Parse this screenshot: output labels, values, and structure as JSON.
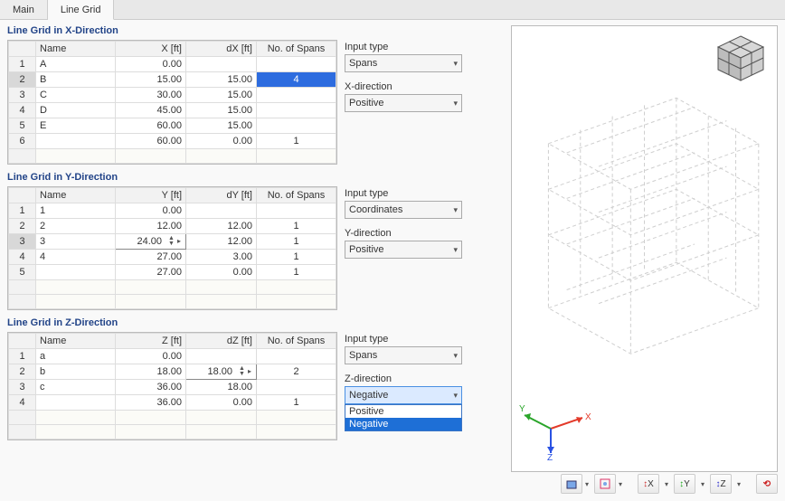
{
  "tabs": {
    "main": "Main",
    "linegrid": "Line Grid"
  },
  "sections": {
    "x": {
      "title": "Line Grid in X-Direction",
      "cols": [
        "",
        "Name",
        "X [ft]",
        "dX [ft]",
        "No. of Spans"
      ],
      "rows": [
        {
          "n": "1",
          "name": "A",
          "v": "0.00",
          "d": "",
          "s": ""
        },
        {
          "n": "2",
          "name": "B",
          "v": "15.00",
          "d": "15.00",
          "s": "4",
          "hl": true
        },
        {
          "n": "3",
          "name": "C",
          "v": "30.00",
          "d": "15.00",
          "s": ""
        },
        {
          "n": "4",
          "name": "D",
          "v": "45.00",
          "d": "15.00",
          "s": ""
        },
        {
          "n": "5",
          "name": "E",
          "v": "60.00",
          "d": "15.00",
          "s": ""
        },
        {
          "n": "6",
          "name": "",
          "v": "60.00",
          "d": "0.00",
          "s": "1"
        }
      ],
      "input_label": "Input type",
      "input_value": "Spans",
      "dir_label": "X-direction",
      "dir_value": "Positive"
    },
    "y": {
      "title": "Line Grid in Y-Direction",
      "cols": [
        "",
        "Name",
        "Y [ft]",
        "dY [ft]",
        "No. of Spans"
      ],
      "rows": [
        {
          "n": "1",
          "name": "1",
          "v": "0.00",
          "d": "",
          "s": ""
        },
        {
          "n": "2",
          "name": "2",
          "v": "12.00",
          "d": "12.00",
          "s": "1"
        },
        {
          "n": "3",
          "name": "3",
          "v": "24.00",
          "d": "12.00",
          "s": "1",
          "spin": true
        },
        {
          "n": "4",
          "name": "4",
          "v": "27.00",
          "d": "3.00",
          "s": "1"
        },
        {
          "n": "5",
          "name": "",
          "v": "27.00",
          "d": "0.00",
          "s": "1"
        }
      ],
      "input_label": "Input type",
      "input_value": "Coordinates",
      "dir_label": "Y-direction",
      "dir_value": "Positive"
    },
    "z": {
      "title": "Line Grid in Z-Direction",
      "cols": [
        "",
        "Name",
        "Z [ft]",
        "dZ [ft]",
        "No. of Spans"
      ],
      "rows": [
        {
          "n": "1",
          "name": "a",
          "v": "0.00",
          "d": "",
          "s": ""
        },
        {
          "n": "2",
          "name": "b",
          "v": "18.00",
          "d": "18.00",
          "s": "2",
          "spin_d": true
        },
        {
          "n": "3",
          "name": "c",
          "v": "36.00",
          "d": "18.00",
          "s": ""
        },
        {
          "n": "4",
          "name": "",
          "v": "36.00",
          "d": "0.00",
          "s": "1"
        }
      ],
      "input_label": "Input type",
      "input_value": "Spans",
      "dir_label": "Z-direction",
      "dir_value": "Negative",
      "dir_options": [
        "Positive",
        "Negative"
      ],
      "dir_open": true
    }
  },
  "axis": {
    "x": "X",
    "y": "Y",
    "z": "Z"
  },
  "colors": {
    "title": "#224488",
    "highlight": "#2d6cdf",
    "axis_x": "#e33a2a",
    "axis_y": "#2aa52a",
    "axis_z": "#2a52e3",
    "grid3d": "#cfcfcf"
  },
  "toolbar_icons": [
    "view-iso",
    "view-menu",
    "view-fit",
    "axis-x",
    "axis-y",
    "axis-neg-y",
    "axis-z",
    "axis-neg-z",
    "reset"
  ]
}
